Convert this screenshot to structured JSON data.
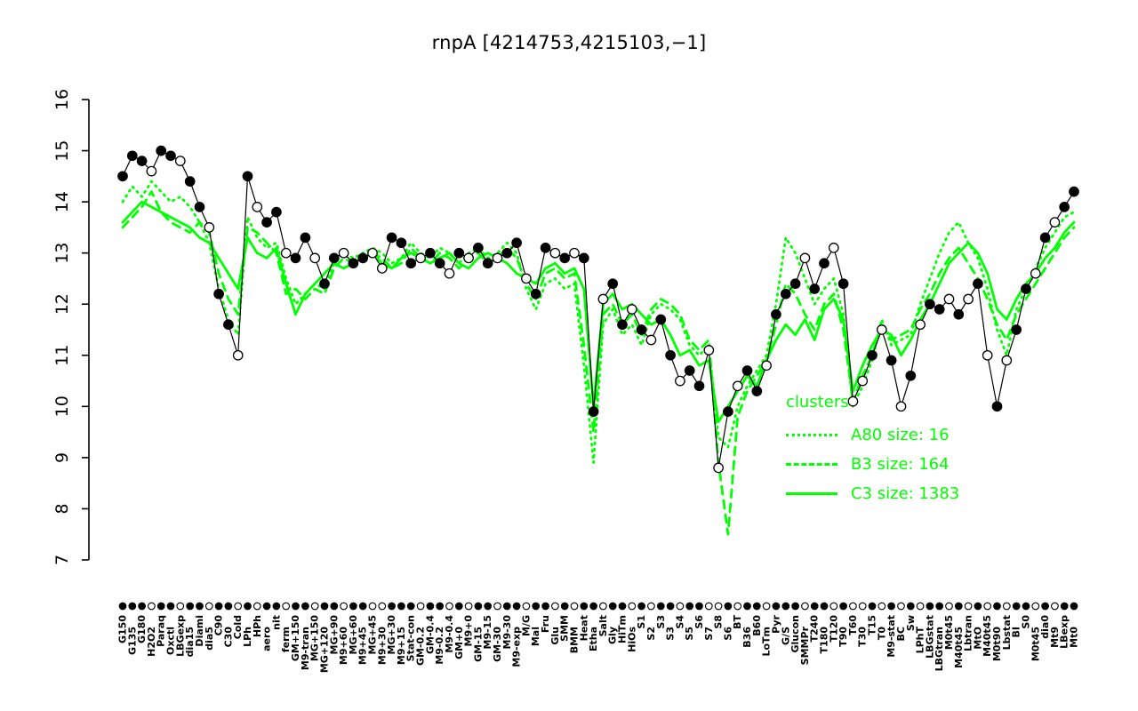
{
  "title": "rnpA [4214753,4215103,−1]",
  "colors": {
    "series_green": "#00FF00",
    "points_black": "#000000",
    "background": "#FFFFFF"
  },
  "legend": {
    "title": "clusters",
    "entries": [
      {
        "label": "A80 size: 16",
        "style": "dotted"
      },
      {
        "label": "B3 size: 164",
        "style": "dashed"
      },
      {
        "label": "C3 size: 1383",
        "style": "solid"
      }
    ]
  },
  "chart_data": {
    "type": "line",
    "title": "rnpA [4214753,4215103,−1]",
    "ylim": [
      7,
      16
    ],
    "y_ticks": [
      7,
      8,
      9,
      10,
      11,
      12,
      13,
      14,
      15,
      16
    ],
    "grid": false,
    "legend_position": "right-center",
    "categories": [
      "G150",
      "G135",
      "G180",
      "H2O2",
      "Paraq",
      "Oxctl",
      "LBGexp",
      "dia15",
      "Diami",
      "dia5",
      "C90",
      "C30",
      "Cold",
      "LPh",
      "HPh",
      "aero",
      "nit",
      "ferm",
      "GM+150",
      "M9-tran",
      "MG+150",
      "MG+120",
      "MG+90",
      "M9+60",
      "MG+60",
      "M9+45",
      "MG+45",
      "M9+30",
      "MG+30",
      "M9+15",
      "Stat-con",
      "GM-0.2",
      "GM-0.4",
      "M9-0.2",
      "M9-0.4",
      "GM+0",
      "M9+0",
      "GM-15",
      "M9-15",
      "GM-30",
      "M9-30",
      "M9-exp",
      "M/G",
      "Mal",
      "Fru",
      "Glu",
      "SMM",
      "BMM",
      "Heat",
      "Etha",
      "Salt",
      "Gly",
      "HiTm",
      "HiOs",
      "S1",
      "S2",
      "S3",
      "S3",
      "S4",
      "S5",
      "S6",
      "S7",
      "S8",
      "S6",
      "BT",
      "B36",
      "B60",
      "LoTm",
      "Pyr",
      "G/S",
      "Glucon",
      "SMMPr",
      "T240",
      "T180",
      "T120",
      "T90",
      "T60",
      "T30",
      "T15",
      "T0",
      "M9-stat",
      "BC",
      "Sw",
      "LPhT",
      "LBGstat",
      "LBGtran",
      "M0t45",
      "M40t45",
      "Lbtran",
      "MtO",
      "M40t45",
      "M0t90",
      "Lbstat",
      "BI",
      "S0",
      "M0t45",
      "dia0",
      "Mt9",
      "LBexp",
      "Mt0"
    ],
    "series": [
      {
        "name": "gene-profile",
        "color": "#000000",
        "line": "solid",
        "marker": "circle",
        "values": [
          14.5,
          14.9,
          14.8,
          14.6,
          15.0,
          14.9,
          14.8,
          14.4,
          13.9,
          13.5,
          12.2,
          11.6,
          11.0,
          14.5,
          13.9,
          13.6,
          13.8,
          13.0,
          12.9,
          13.3,
          12.9,
          12.4,
          12.9,
          13.0,
          12.8,
          12.9,
          13.0,
          12.7,
          13.3,
          13.2,
          12.8,
          12.9,
          13.0,
          12.8,
          12.6,
          13.0,
          12.9,
          13.1,
          12.8,
          12.9,
          13.0,
          13.2,
          12.5,
          12.2,
          13.1,
          13.0,
          12.9,
          13.0,
          12.9,
          9.9,
          12.1,
          12.4,
          11.6,
          11.9,
          11.5,
          11.3,
          11.7,
          11.0,
          10.5,
          10.7,
          10.4,
          11.1,
          8.8,
          9.9,
          10.4,
          10.7,
          10.3,
          10.8,
          11.8,
          12.2,
          12.4,
          12.9,
          12.3,
          12.8,
          13.1,
          12.4,
          10.1,
          10.5,
          11.0,
          11.5,
          10.9,
          10.0,
          10.6,
          11.6,
          12.0,
          11.9,
          12.1,
          11.8,
          12.1,
          12.4,
          11.0,
          10.0,
          10.9,
          11.5,
          12.3,
          12.6,
          13.3,
          13.6,
          13.9,
          14.2
        ],
        "point_filled": [
          1,
          1,
          1,
          0,
          1,
          1,
          0,
          1,
          1,
          0,
          1,
          1,
          0,
          1,
          0,
          1,
          1,
          0,
          1,
          1,
          0,
          1,
          1,
          0,
          1,
          1,
          0,
          0,
          1,
          1,
          1,
          0,
          1,
          1,
          0,
          1,
          0,
          1,
          1,
          0,
          1,
          1,
          0,
          1,
          1,
          0,
          1,
          0,
          1,
          1,
          0,
          1,
          1,
          0,
          1,
          0,
          1,
          1,
          0,
          1,
          1,
          0,
          0,
          1,
          0,
          1,
          1,
          0,
          1,
          1,
          1,
          0,
          1,
          1,
          0,
          1,
          0,
          0,
          1,
          0,
          1,
          0,
          1,
          0,
          1,
          1,
          0,
          1,
          0,
          1,
          0,
          1,
          0,
          1,
          1,
          0,
          1,
          0,
          1,
          1
        ]
      },
      {
        "name": "A80",
        "legend_label": "A80 size: 16",
        "color": "#00FF00",
        "line": "dotted",
        "values": [
          14.0,
          14.3,
          14.1,
          14.4,
          14.2,
          14.0,
          14.1,
          13.9,
          13.6,
          13.2,
          12.3,
          11.7,
          11.4,
          13.7,
          13.3,
          13.1,
          13.2,
          12.5,
          12.0,
          12.2,
          12.4,
          12.3,
          12.8,
          13.0,
          12.9,
          13.0,
          13.1,
          13.0,
          12.8,
          12.9,
          13.2,
          13.0,
          12.9,
          13.1,
          13.0,
          12.8,
          13.0,
          13.1,
          12.9,
          13.0,
          13.2,
          13.0,
          12.3,
          11.9,
          12.4,
          12.5,
          12.3,
          12.4,
          10.8,
          8.9,
          11.6,
          11.9,
          11.4,
          11.6,
          11.2,
          11.8,
          12.0,
          11.9,
          11.7,
          11.2,
          11.0,
          11.2,
          9.4,
          9.2,
          10.0,
          10.4,
          10.7,
          11.0,
          12.0,
          13.3,
          13.0,
          12.5,
          12.0,
          12.3,
          12.5,
          11.8,
          10.0,
          10.4,
          10.9,
          11.7,
          11.2,
          11.3,
          11.4,
          12.0,
          12.5,
          13.0,
          13.4,
          13.6,
          13.2,
          12.9,
          12.3,
          11.5,
          11.0,
          11.9,
          12.3,
          12.7,
          13.1,
          13.4,
          13.7,
          13.8
        ]
      },
      {
        "name": "B3",
        "legend_label": "B3 size: 164",
        "color": "#00FF00",
        "line": "dashed",
        "values": [
          13.5,
          13.7,
          13.9,
          14.2,
          13.8,
          13.6,
          13.5,
          13.4,
          13.6,
          13.4,
          12.6,
          12.1,
          11.8,
          13.5,
          13.4,
          13.2,
          13.0,
          12.2,
          12.3,
          12.1,
          12.3,
          12.2,
          12.7,
          12.9,
          12.8,
          12.9,
          13.0,
          12.9,
          12.7,
          12.8,
          13.1,
          12.9,
          12.8,
          13.0,
          12.9,
          12.7,
          12.9,
          13.0,
          12.8,
          12.9,
          13.1,
          12.9,
          12.4,
          12.1,
          12.6,
          12.7,
          12.5,
          12.6,
          11.2,
          9.5,
          11.8,
          12.0,
          11.6,
          11.8,
          11.4,
          11.9,
          12.1,
          12.0,
          11.8,
          11.3,
          11.1,
          11.3,
          8.9,
          7.5,
          9.8,
          10.3,
          10.6,
          10.9,
          11.6,
          12.4,
          12.2,
          11.8,
          11.5,
          12.0,
          12.2,
          11.5,
          10.1,
          10.6,
          11.0,
          11.6,
          11.3,
          11.4,
          11.5,
          11.9,
          12.2,
          12.6,
          12.9,
          13.1,
          12.8,
          12.5,
          12.1,
          11.6,
          11.3,
          11.8,
          12.1,
          12.4,
          12.7,
          13.0,
          13.3,
          13.5
        ]
      },
      {
        "name": "C3",
        "legend_label": "C3 size: 1383",
        "color": "#00FF00",
        "line": "solid",
        "values": [
          13.6,
          13.8,
          14.0,
          13.9,
          13.8,
          13.7,
          13.6,
          13.5,
          13.3,
          13.2,
          12.9,
          12.6,
          12.3,
          13.3,
          13.0,
          12.9,
          13.1,
          12.4,
          11.8,
          12.2,
          12.4,
          12.6,
          12.8,
          12.7,
          12.8,
          12.9,
          13.0,
          12.8,
          12.7,
          12.9,
          13.0,
          12.9,
          12.8,
          12.9,
          13.0,
          12.8,
          12.7,
          12.9,
          13.0,
          12.9,
          12.8,
          12.6,
          12.5,
          12.4,
          12.7,
          12.8,
          12.6,
          12.7,
          12.3,
          10.0,
          12.0,
          12.2,
          11.9,
          12.0,
          11.8,
          11.6,
          11.7,
          11.4,
          11.0,
          11.1,
          10.8,
          10.9,
          9.7,
          10.0,
          10.3,
          10.6,
          10.4,
          10.9,
          11.3,
          11.6,
          11.4,
          11.7,
          11.3,
          11.9,
          12.1,
          11.7,
          10.3,
          10.8,
          11.2,
          11.5,
          11.4,
          11.0,
          11.3,
          11.7,
          12.0,
          12.4,
          12.8,
          13.0,
          13.2,
          13.0,
          12.6,
          11.9,
          11.7,
          12.1,
          12.4,
          12.6,
          12.9,
          13.1,
          13.4,
          13.6
        ]
      }
    ]
  }
}
